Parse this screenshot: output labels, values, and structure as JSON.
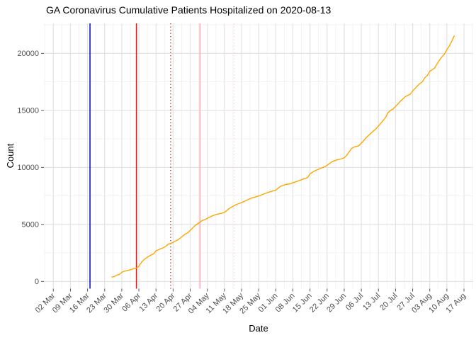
{
  "title": "GA Coronavirus Cumulative Patients Hospitalized on 2020-08-13",
  "chart_data": {
    "type": "line",
    "title": "GA Coronavirus Cumulative Patients Hospitalized on 2020-08-13",
    "xlabel": "Date",
    "ylabel": "Count",
    "legend": "none",
    "grid": "major+minor",
    "background": "#ffffff",
    "grid_major_color": "#e3e3e3",
    "grid_minor_color": "#f1f1f1",
    "tick_label_color": "#4d4d4d",
    "x_start_date": "2020-03-02",
    "x_tick_interval_days": 7,
    "x_ticks": [
      "02 Mar",
      "09 Mar",
      "16 Mar",
      "23 Mar",
      "30 Mar",
      "06 Apr",
      "13 Apr",
      "20 Apr",
      "27 Apr",
      "04 May",
      "11 May",
      "18 May",
      "25 May",
      "01 Jun",
      "08 Jun",
      "15 Jun",
      "22 Jun",
      "29 Jun",
      "06 Jul",
      "13 Jul",
      "20 Jul",
      "27 Jul",
      "03 Aug",
      "10 Aug",
      "17 Aug"
    ],
    "y_ticks": [
      0,
      5000,
      10000,
      15000,
      20000
    ],
    "ylim": [
      -630,
      22630
    ],
    "xlim_days": [
      -3.85,
      171.76
    ],
    "reference_lines": [
      {
        "name": "blue-solid",
        "date": "2020-03-17",
        "color": "#1515cd",
        "style": "solid",
        "width": 1.6
      },
      {
        "name": "red-solid",
        "date": "2020-04-05",
        "color": "#ea1515",
        "style": "solid",
        "width": 1.6
      },
      {
        "name": "red-dotted",
        "date": "2020-04-19",
        "color": "#b22222",
        "style": "dotted",
        "width": 1.4
      },
      {
        "name": "pink-solid",
        "date": "2020-05-01",
        "color": "#ffb6c1",
        "style": "solid",
        "width": 2.0
      },
      {
        "name": "pink-dotted",
        "date": "2020-05-15",
        "color": "#ffd1db",
        "style": "dotted",
        "width": 1.4
      }
    ],
    "series": [
      {
        "name": "cumulative-patients-hospitalized",
        "color": "#ffa500",
        "width": 1.4,
        "points": [
          [
            "2020-03-26",
            380
          ],
          [
            "2020-03-27",
            440
          ],
          [
            "2020-03-28",
            560
          ],
          [
            "2020-03-29",
            620
          ],
          [
            "2020-03-30",
            800
          ],
          [
            "2020-03-31",
            900
          ],
          [
            "2020-04-01",
            950
          ],
          [
            "2020-04-02",
            1000
          ],
          [
            "2020-04-03",
            1060
          ],
          [
            "2020-04-04",
            1130
          ],
          [
            "2020-04-05",
            1180
          ],
          [
            "2020-04-06",
            1330
          ],
          [
            "2020-04-07",
            1660
          ],
          [
            "2020-04-08",
            1900
          ],
          [
            "2020-04-09",
            2060
          ],
          [
            "2020-04-10",
            2200
          ],
          [
            "2020-04-11",
            2320
          ],
          [
            "2020-04-12",
            2420
          ],
          [
            "2020-04-13",
            2690
          ],
          [
            "2020-04-14",
            2780
          ],
          [
            "2020-04-15",
            2870
          ],
          [
            "2020-04-16",
            2960
          ],
          [
            "2020-04-17",
            3080
          ],
          [
            "2020-04-18",
            3270
          ],
          [
            "2020-04-19",
            3340
          ],
          [
            "2020-04-20",
            3420
          ],
          [
            "2020-04-21",
            3550
          ],
          [
            "2020-04-22",
            3650
          ],
          [
            "2020-04-23",
            3820
          ],
          [
            "2020-04-24",
            4000
          ],
          [
            "2020-04-25",
            4160
          ],
          [
            "2020-04-26",
            4250
          ],
          [
            "2020-04-27",
            4480
          ],
          [
            "2020-04-28",
            4690
          ],
          [
            "2020-04-29",
            4900
          ],
          [
            "2020-04-30",
            5050
          ],
          [
            "2020-05-01",
            5200
          ],
          [
            "2020-05-02",
            5350
          ],
          [
            "2020-05-03",
            5420
          ],
          [
            "2020-05-04",
            5530
          ],
          [
            "2020-05-06",
            5750
          ],
          [
            "2020-05-08",
            5900
          ],
          [
            "2020-05-10",
            5990
          ],
          [
            "2020-05-11",
            6060
          ],
          [
            "2020-05-13",
            6400
          ],
          [
            "2020-05-15",
            6640
          ],
          [
            "2020-05-16",
            6760
          ],
          [
            "2020-05-18",
            6910
          ],
          [
            "2020-05-20",
            7110
          ],
          [
            "2020-05-22",
            7310
          ],
          [
            "2020-05-24",
            7430
          ],
          [
            "2020-05-25",
            7500
          ],
          [
            "2020-05-27",
            7660
          ],
          [
            "2020-05-29",
            7820
          ],
          [
            "2020-05-31",
            7950
          ],
          [
            "2020-06-01",
            8010
          ],
          [
            "2020-06-03",
            8350
          ],
          [
            "2020-06-05",
            8500
          ],
          [
            "2020-06-07",
            8560
          ],
          [
            "2020-06-08",
            8660
          ],
          [
            "2020-06-10",
            8800
          ],
          [
            "2020-06-12",
            8960
          ],
          [
            "2020-06-14",
            9100
          ],
          [
            "2020-06-15",
            9440
          ],
          [
            "2020-06-17",
            9700
          ],
          [
            "2020-06-19",
            9890
          ],
          [
            "2020-06-21",
            10050
          ],
          [
            "2020-06-22",
            10190
          ],
          [
            "2020-06-24",
            10500
          ],
          [
            "2020-06-26",
            10660
          ],
          [
            "2020-06-28",
            10770
          ],
          [
            "2020-06-29",
            10840
          ],
          [
            "2020-06-30",
            11050
          ],
          [
            "2020-07-01",
            11350
          ],
          [
            "2020-07-02",
            11660
          ],
          [
            "2020-07-03",
            11780
          ],
          [
            "2020-07-04",
            11840
          ],
          [
            "2020-07-05",
            11890
          ],
          [
            "2020-07-06",
            12130
          ],
          [
            "2020-07-07",
            12350
          ],
          [
            "2020-07-08",
            12620
          ],
          [
            "2020-07-09",
            12800
          ],
          [
            "2020-07-10",
            13010
          ],
          [
            "2020-07-11",
            13200
          ],
          [
            "2020-07-12",
            13380
          ],
          [
            "2020-07-13",
            13630
          ],
          [
            "2020-07-14",
            13880
          ],
          [
            "2020-07-15",
            14120
          ],
          [
            "2020-07-16",
            14400
          ],
          [
            "2020-07-17",
            14820
          ],
          [
            "2020-07-18",
            15000
          ],
          [
            "2020-07-19",
            15120
          ],
          [
            "2020-07-20",
            15350
          ],
          [
            "2020-07-21",
            15560
          ],
          [
            "2020-07-22",
            15810
          ],
          [
            "2020-07-23",
            16010
          ],
          [
            "2020-07-24",
            16210
          ],
          [
            "2020-07-25",
            16310
          ],
          [
            "2020-07-26",
            16420
          ],
          [
            "2020-07-27",
            16700
          ],
          [
            "2020-07-28",
            16930
          ],
          [
            "2020-07-29",
            17160
          ],
          [
            "2020-07-30",
            17350
          ],
          [
            "2020-07-31",
            17520
          ],
          [
            "2020-08-01",
            17870
          ],
          [
            "2020-08-02",
            18060
          ],
          [
            "2020-08-03",
            18420
          ],
          [
            "2020-08-04",
            18570
          ],
          [
            "2020-08-05",
            18720
          ],
          [
            "2020-08-06",
            19080
          ],
          [
            "2020-08-07",
            19420
          ],
          [
            "2020-08-08",
            19700
          ],
          [
            "2020-08-09",
            19930
          ],
          [
            "2020-08-10",
            20330
          ],
          [
            "2020-08-11",
            20640
          ],
          [
            "2020-08-12",
            21060
          ],
          [
            "2020-08-13",
            21530
          ]
        ]
      }
    ]
  }
}
